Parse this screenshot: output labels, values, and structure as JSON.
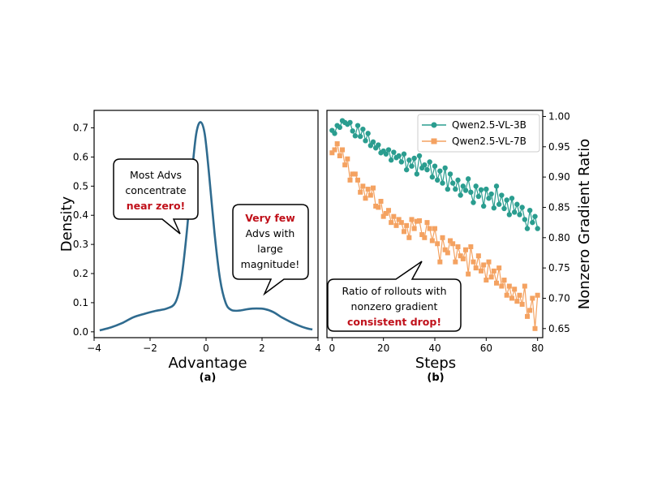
{
  "colors": {
    "density": "#2f6b8f",
    "series_3b": "#2a9d8f",
    "series_7b": "#f4a261",
    "highlight": "#c0101a"
  },
  "chart_data": [
    {
      "panel": "(a)",
      "type": "line",
      "xlabel": "Advantage",
      "ylabel": "Density",
      "xlim": [
        -4,
        4
      ],
      "ylim": [
        -0.02,
        0.76
      ],
      "xticks": [
        -4,
        -2,
        0,
        2,
        4
      ],
      "xtick_labels": [
        "−4",
        "−2",
        "0",
        "2",
        "4"
      ],
      "yticks": [
        0.0,
        0.1,
        0.2,
        0.3,
        0.4,
        0.5,
        0.6,
        0.7
      ],
      "ytick_labels": [
        "0.0",
        "0.1",
        "0.2",
        "0.3",
        "0.4",
        "0.5",
        "0.6",
        "0.7"
      ],
      "grid": false,
      "x": [
        -3.8,
        -3.4,
        -3.0,
        -2.6,
        -2.2,
        -1.8,
        -1.4,
        -1.1,
        -0.9,
        -0.7,
        -0.5,
        -0.35,
        -0.2,
        -0.05,
        0.1,
        0.3,
        0.5,
        0.7,
        0.9,
        1.2,
        1.5,
        1.8,
        2.1,
        2.4,
        2.7,
        3.0,
        3.3,
        3.6,
        3.8
      ],
      "y": [
        0.005,
        0.015,
        0.03,
        0.05,
        0.062,
        0.072,
        0.08,
        0.1,
        0.17,
        0.33,
        0.55,
        0.68,
        0.72,
        0.68,
        0.55,
        0.34,
        0.18,
        0.1,
        0.075,
        0.073,
        0.078,
        0.08,
        0.078,
        0.068,
        0.05,
        0.035,
        0.022,
        0.012,
        0.008
      ],
      "annotations": [
        {
          "lines": [
            "Most Advs",
            "concentrate"
          ],
          "highlight": "near zero!"
        },
        {
          "highlight": "Very few",
          "lines": [
            "Advs with",
            "large",
            "magnitude!"
          ]
        }
      ]
    },
    {
      "panel": "(b)",
      "type": "line",
      "xlabel": "Steps",
      "ylabel": "Nonzero Gradient Ratio",
      "xlim": [
        -2,
        82
      ],
      "ylim": [
        0.635,
        1.01
      ],
      "xticks": [
        0,
        20,
        40,
        60,
        80
      ],
      "xtick_labels": [
        "0",
        "20",
        "40",
        "60",
        "80"
      ],
      "yticks": [
        0.65,
        0.7,
        0.75,
        0.8,
        0.85,
        0.9,
        0.95,
        1.0
      ],
      "ytick_labels": [
        "0.65",
        "0.70",
        "0.75",
        "0.80",
        "0.85",
        "0.90",
        "0.95",
        "1.00"
      ],
      "grid": false,
      "legend": "top-right",
      "series": [
        {
          "name": "Qwen2.5-VL-3B",
          "marker": "circle",
          "values": [
            0.977,
            0.972,
            0.985,
            0.982,
            0.993,
            0.99,
            0.987,
            0.99,
            0.976,
            0.968,
            0.985,
            0.967,
            0.979,
            0.96,
            0.972,
            0.952,
            0.958,
            0.948,
            0.953,
            0.94,
            0.943,
            0.938,
            0.945,
            0.928,
            0.941,
            0.932,
            0.935,
            0.925,
            0.938,
            0.912,
            0.928,
            0.918,
            0.931,
            0.905,
            0.935,
            0.915,
            0.92,
            0.912,
            0.925,
            0.9,
            0.918,
            0.895,
            0.91,
            0.89,
            0.915,
            0.88,
            0.905,
            0.89,
            0.88,
            0.895,
            0.87,
            0.885,
            0.878,
            0.897,
            0.875,
            0.858,
            0.885,
            0.868,
            0.879,
            0.852,
            0.88,
            0.865,
            0.872,
            0.849,
            0.885,
            0.855,
            0.87,
            0.848,
            0.862,
            0.838,
            0.865,
            0.842,
            0.855,
            0.838,
            0.85,
            0.83,
            0.815,
            0.845,
            0.825,
            0.835,
            0.815
          ]
        },
        {
          "name": "Qwen2.5-VL-7B",
          "marker": "square",
          "values": [
            0.94,
            0.945,
            0.955,
            0.935,
            0.945,
            0.92,
            0.93,
            0.895,
            0.905,
            0.905,
            0.895,
            0.875,
            0.885,
            0.865,
            0.88,
            0.87,
            0.882,
            0.852,
            0.85,
            0.86,
            0.835,
            0.84,
            0.845,
            0.825,
            0.835,
            0.82,
            0.83,
            0.825,
            0.81,
            0.82,
            0.8,
            0.83,
            0.815,
            0.827,
            0.828,
            0.805,
            0.8,
            0.825,
            0.815,
            0.795,
            0.815,
            0.79,
            0.76,
            0.8,
            0.78,
            0.775,
            0.795,
            0.79,
            0.76,
            0.785,
            0.77,
            0.765,
            0.78,
            0.74,
            0.785,
            0.76,
            0.75,
            0.77,
            0.745,
            0.755,
            0.73,
            0.76,
            0.735,
            0.745,
            0.725,
            0.75,
            0.72,
            0.73,
            0.705,
            0.72,
            0.7,
            0.715,
            0.695,
            0.705,
            0.69,
            0.72,
            0.67,
            0.68,
            0.7,
            0.65,
            0.705
          ]
        }
      ],
      "annotations": [
        {
          "lines": [
            "Ratio of rollouts with",
            "nonzero gradient"
          ],
          "highlight": "consistent drop!"
        }
      ]
    }
  ]
}
